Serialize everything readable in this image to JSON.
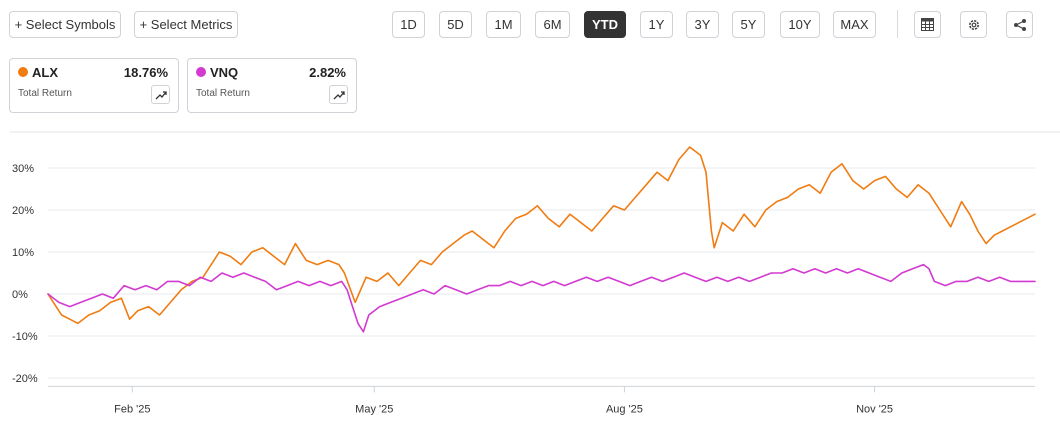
{
  "toolbar": {
    "select_symbols_label": "+ Select Symbols",
    "select_metrics_label": "+ Select Metrics",
    "ranges": [
      "1D",
      "5D",
      "1M",
      "6M",
      "YTD",
      "1Y",
      "3Y",
      "5Y",
      "10Y",
      "MAX"
    ],
    "active_range": "YTD",
    "icons": [
      "table-icon",
      "gear-icon",
      "share-icon"
    ]
  },
  "cards": [
    {
      "symbol": "ALX",
      "value": "18.76%",
      "label": "Total Return",
      "color": "#f07c12"
    },
    {
      "symbol": "VNQ",
      "value": "2.82%",
      "label": "Total Return",
      "color": "#d23ad1"
    }
  ],
  "chart_data": {
    "type": "line",
    "title": "",
    "xlabel": "",
    "ylabel": "",
    "ylim": [
      -20,
      35
    ],
    "yticks": [
      30,
      20,
      10,
      0,
      -10,
      -20
    ],
    "ytick_labels": [
      "30%",
      "20%",
      "10%",
      "0%",
      "-10%",
      "-20%"
    ],
    "xlim": [
      "2025-01-01",
      "2025-12-30"
    ],
    "xticks": [
      "2025-02-01",
      "2025-05-01",
      "2025-08-01",
      "2025-11-01"
    ],
    "xtick_labels": [
      "Feb '25",
      "May '25",
      "Aug '25",
      "Nov '25"
    ],
    "grid": "horizontal",
    "series": [
      {
        "name": "ALX",
        "color": "#f07c12",
        "points": [
          [
            "2025-01-01",
            0
          ],
          [
            "2025-01-03",
            -2
          ],
          [
            "2025-01-06",
            -5
          ],
          [
            "2025-01-09",
            -6
          ],
          [
            "2025-01-12",
            -7
          ],
          [
            "2025-01-16",
            -5
          ],
          [
            "2025-01-20",
            -4
          ],
          [
            "2025-01-24",
            -2
          ],
          [
            "2025-01-28",
            -1
          ],
          [
            "2025-01-31",
            -6
          ],
          [
            "2025-02-03",
            -4
          ],
          [
            "2025-02-07",
            -3
          ],
          [
            "2025-02-11",
            -5
          ],
          [
            "2025-02-15",
            -2
          ],
          [
            "2025-02-19",
            1
          ],
          [
            "2025-02-23",
            3
          ],
          [
            "2025-02-27",
            4
          ],
          [
            "2025-03-03",
            8
          ],
          [
            "2025-03-05",
            10
          ],
          [
            "2025-03-09",
            9
          ],
          [
            "2025-03-13",
            7
          ],
          [
            "2025-03-17",
            10
          ],
          [
            "2025-03-21",
            11
          ],
          [
            "2025-03-25",
            9
          ],
          [
            "2025-03-29",
            7
          ],
          [
            "2025-04-02",
            12
          ],
          [
            "2025-04-06",
            8
          ],
          [
            "2025-04-10",
            7
          ],
          [
            "2025-04-14",
            8
          ],
          [
            "2025-04-18",
            7
          ],
          [
            "2025-04-20",
            5
          ],
          [
            "2025-04-24",
            -2
          ],
          [
            "2025-04-28",
            4
          ],
          [
            "2025-05-02",
            3
          ],
          [
            "2025-05-06",
            5
          ],
          [
            "2025-05-10",
            2
          ],
          [
            "2025-05-14",
            5
          ],
          [
            "2025-05-18",
            8
          ],
          [
            "2025-05-22",
            7
          ],
          [
            "2025-05-26",
            10
          ],
          [
            "2025-05-30",
            12
          ],
          [
            "2025-06-03",
            14
          ],
          [
            "2025-06-06",
            15
          ],
          [
            "2025-06-10",
            13
          ],
          [
            "2025-06-14",
            11
          ],
          [
            "2025-06-18",
            15
          ],
          [
            "2025-06-22",
            18
          ],
          [
            "2025-06-26",
            19
          ],
          [
            "2025-06-30",
            21
          ],
          [
            "2025-07-04",
            18
          ],
          [
            "2025-07-08",
            16
          ],
          [
            "2025-07-12",
            19
          ],
          [
            "2025-07-16",
            17
          ],
          [
            "2025-07-20",
            15
          ],
          [
            "2025-07-24",
            18
          ],
          [
            "2025-07-28",
            21
          ],
          [
            "2025-08-01",
            20
          ],
          [
            "2025-08-05",
            23
          ],
          [
            "2025-08-09",
            26
          ],
          [
            "2025-08-13",
            29
          ],
          [
            "2025-08-17",
            27
          ],
          [
            "2025-08-21",
            32
          ],
          [
            "2025-08-25",
            35
          ],
          [
            "2025-08-29",
            33
          ],
          [
            "2025-08-31",
            29
          ],
          [
            "2025-09-02",
            15
          ],
          [
            "2025-09-03",
            11
          ],
          [
            "2025-09-06",
            17
          ],
          [
            "2025-09-10",
            15
          ],
          [
            "2025-09-14",
            19
          ],
          [
            "2025-09-18",
            16
          ],
          [
            "2025-09-22",
            20
          ],
          [
            "2025-09-26",
            22
          ],
          [
            "2025-09-30",
            23
          ],
          [
            "2025-10-04",
            25
          ],
          [
            "2025-10-08",
            26
          ],
          [
            "2025-10-12",
            24
          ],
          [
            "2025-10-16",
            29
          ],
          [
            "2025-10-20",
            31
          ],
          [
            "2025-10-24",
            27
          ],
          [
            "2025-10-28",
            25
          ],
          [
            "2025-11-01",
            27
          ],
          [
            "2025-11-05",
            28
          ],
          [
            "2025-11-09",
            25
          ],
          [
            "2025-11-13",
            23
          ],
          [
            "2025-11-17",
            26
          ],
          [
            "2025-11-21",
            24
          ],
          [
            "2025-11-25",
            20
          ],
          [
            "2025-11-29",
            16
          ],
          [
            "2025-12-01",
            19
          ],
          [
            "2025-12-03",
            22
          ],
          [
            "2025-12-06",
            19
          ],
          [
            "2025-12-09",
            15
          ],
          [
            "2025-12-12",
            12
          ],
          [
            "2025-12-15",
            14
          ],
          [
            "2025-12-18",
            15
          ],
          [
            "2025-12-21",
            16
          ],
          [
            "2025-12-24",
            17
          ],
          [
            "2025-12-27",
            18
          ],
          [
            "2025-12-30",
            19
          ]
        ]
      },
      {
        "name": "VNQ",
        "color": "#d23ad1",
        "points": [
          [
            "2025-01-01",
            0
          ],
          [
            "2025-01-05",
            -2
          ],
          [
            "2025-01-09",
            -3
          ],
          [
            "2025-01-13",
            -2
          ],
          [
            "2025-01-17",
            -1
          ],
          [
            "2025-01-21",
            0
          ],
          [
            "2025-01-25",
            -1
          ],
          [
            "2025-01-29",
            2
          ],
          [
            "2025-02-02",
            1
          ],
          [
            "2025-02-06",
            2
          ],
          [
            "2025-02-10",
            1
          ],
          [
            "2025-02-14",
            3
          ],
          [
            "2025-02-18",
            3
          ],
          [
            "2025-02-22",
            2
          ],
          [
            "2025-02-26",
            4
          ],
          [
            "2025-03-02",
            3
          ],
          [
            "2025-03-06",
            5
          ],
          [
            "2025-03-10",
            4
          ],
          [
            "2025-03-14",
            5
          ],
          [
            "2025-03-18",
            4
          ],
          [
            "2025-03-22",
            3
          ],
          [
            "2025-03-26",
            1
          ],
          [
            "2025-03-30",
            2
          ],
          [
            "2025-04-03",
            3
          ],
          [
            "2025-04-07",
            2
          ],
          [
            "2025-04-11",
            3
          ],
          [
            "2025-04-15",
            2
          ],
          [
            "2025-04-19",
            3
          ],
          [
            "2025-04-21",
            1
          ],
          [
            "2025-04-23",
            -3
          ],
          [
            "2025-04-25",
            -7
          ],
          [
            "2025-04-27",
            -9
          ],
          [
            "2025-04-29",
            -5
          ],
          [
            "2025-05-03",
            -3
          ],
          [
            "2025-05-07",
            -2
          ],
          [
            "2025-05-11",
            -1
          ],
          [
            "2025-05-15",
            0
          ],
          [
            "2025-05-19",
            1
          ],
          [
            "2025-05-23",
            0
          ],
          [
            "2025-05-27",
            2
          ],
          [
            "2025-05-31",
            1
          ],
          [
            "2025-06-04",
            0
          ],
          [
            "2025-06-08",
            1
          ],
          [
            "2025-06-12",
            2
          ],
          [
            "2025-06-16",
            2
          ],
          [
            "2025-06-20",
            3
          ],
          [
            "2025-06-24",
            2
          ],
          [
            "2025-06-28",
            3
          ],
          [
            "2025-07-02",
            2
          ],
          [
            "2025-07-06",
            3
          ],
          [
            "2025-07-10",
            2
          ],
          [
            "2025-07-14",
            3
          ],
          [
            "2025-07-18",
            4
          ],
          [
            "2025-07-22",
            3
          ],
          [
            "2025-07-26",
            4
          ],
          [
            "2025-07-30",
            3
          ],
          [
            "2025-08-03",
            2
          ],
          [
            "2025-08-07",
            3
          ],
          [
            "2025-08-11",
            4
          ],
          [
            "2025-08-15",
            3
          ],
          [
            "2025-08-19",
            4
          ],
          [
            "2025-08-23",
            5
          ],
          [
            "2025-08-27",
            4
          ],
          [
            "2025-08-31",
            3
          ],
          [
            "2025-09-04",
            4
          ],
          [
            "2025-09-08",
            3
          ],
          [
            "2025-09-12",
            4
          ],
          [
            "2025-09-16",
            3
          ],
          [
            "2025-09-20",
            4
          ],
          [
            "2025-09-24",
            5
          ],
          [
            "2025-09-28",
            5
          ],
          [
            "2025-10-02",
            6
          ],
          [
            "2025-10-06",
            5
          ],
          [
            "2025-10-10",
            6
          ],
          [
            "2025-10-14",
            5
          ],
          [
            "2025-10-18",
            6
          ],
          [
            "2025-10-22",
            5
          ],
          [
            "2025-10-26",
            6
          ],
          [
            "2025-10-30",
            5
          ],
          [
            "2025-11-03",
            4
          ],
          [
            "2025-11-07",
            3
          ],
          [
            "2025-11-11",
            5
          ],
          [
            "2025-11-15",
            6
          ],
          [
            "2025-11-19",
            7
          ],
          [
            "2025-11-21",
            6
          ],
          [
            "2025-11-23",
            3
          ],
          [
            "2025-11-27",
            2
          ],
          [
            "2025-12-01",
            3
          ],
          [
            "2025-12-05",
            3
          ],
          [
            "2025-12-09",
            4
          ],
          [
            "2025-12-13",
            3
          ],
          [
            "2025-12-17",
            4
          ],
          [
            "2025-12-21",
            3
          ],
          [
            "2025-12-25",
            3
          ],
          [
            "2025-12-30",
            3
          ]
        ]
      }
    ]
  }
}
